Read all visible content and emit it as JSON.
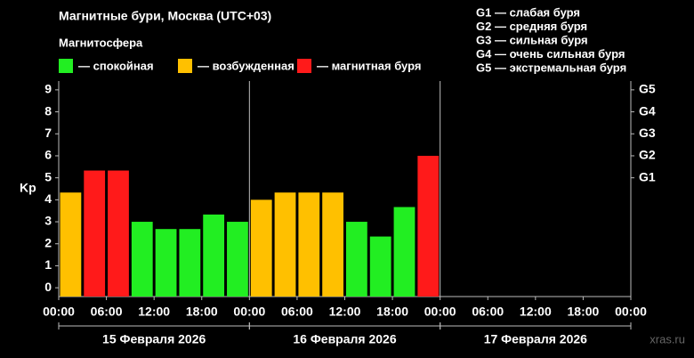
{
  "chart_data": {
    "type": "bar",
    "title": "Магнитные бури, Москва (UTC+03)",
    "legend_title": "Магнитосфера",
    "legend": [
      {
        "label": "— спокойная",
        "color": "#22ee22"
      },
      {
        "label": "— возбужденная",
        "color": "#ffc000"
      },
      {
        "label": "— магнитная буря",
        "color": "#ff1a1a"
      }
    ],
    "storm_scale": [
      "G1 — слабая буря",
      "G2 — средняя буря",
      "G3 — сильная буря",
      "G4 — очень сильная буря",
      "G5 — экстремальная буря"
    ],
    "ylabel": "Kp",
    "x": [
      0,
      3,
      6,
      9,
      12,
      15,
      18,
      21,
      24,
      27,
      30,
      33,
      36,
      39,
      42,
      45
    ],
    "values": [
      4.33,
      5.33,
      5.33,
      3,
      2.67,
      2.67,
      3.33,
      3,
      4,
      4.33,
      4.33,
      4.33,
      3,
      2.33,
      3.67,
      6
    ],
    "colors": [
      "#ffc000",
      "#ff1a1a",
      "#ff1a1a",
      "#22ee22",
      "#22ee22",
      "#22ee22",
      "#22ee22",
      "#22ee22",
      "#ffc000",
      "#ffc000",
      "#ffc000",
      "#ffc000",
      "#22ee22",
      "#22ee22",
      "#22ee22",
      "#ff1a1a"
    ],
    "xlim": [
      0,
      72
    ],
    "xticks": [
      {
        "value": 0,
        "label": "00:00"
      },
      {
        "value": 6,
        "label": "06:00"
      },
      {
        "value": 12,
        "label": "12:00"
      },
      {
        "value": 18,
        "label": "18:00"
      },
      {
        "value": 24,
        "label": "00:00"
      },
      {
        "value": 30,
        "label": "06:00"
      },
      {
        "value": 36,
        "label": "12:00"
      },
      {
        "value": 42,
        "label": "18:00"
      },
      {
        "value": 48,
        "label": "00:00"
      },
      {
        "value": 54,
        "label": "06:00"
      },
      {
        "value": 60,
        "label": "12:00"
      },
      {
        "value": 66,
        "label": "18:00"
      },
      {
        "value": 72,
        "label": "00:00"
      }
    ],
    "days": [
      "15 Февраля 2026",
      "16 Февраля 2026",
      "17 Февраля 2026"
    ],
    "ylim": [
      -0.4,
      9.4
    ],
    "yticks": [
      0,
      1,
      2,
      3,
      4,
      5,
      6,
      7,
      8,
      9
    ],
    "y2lim": [
      -0.4,
      9.4
    ],
    "y2ticks": [
      {
        "value": 5,
        "label": "G1"
      },
      {
        "value": 6,
        "label": "G2"
      },
      {
        "value": 7,
        "label": "G3"
      },
      {
        "value": 8,
        "label": "G4"
      },
      {
        "value": 9,
        "label": "G5"
      }
    ],
    "watermark": "xras.ru"
  }
}
